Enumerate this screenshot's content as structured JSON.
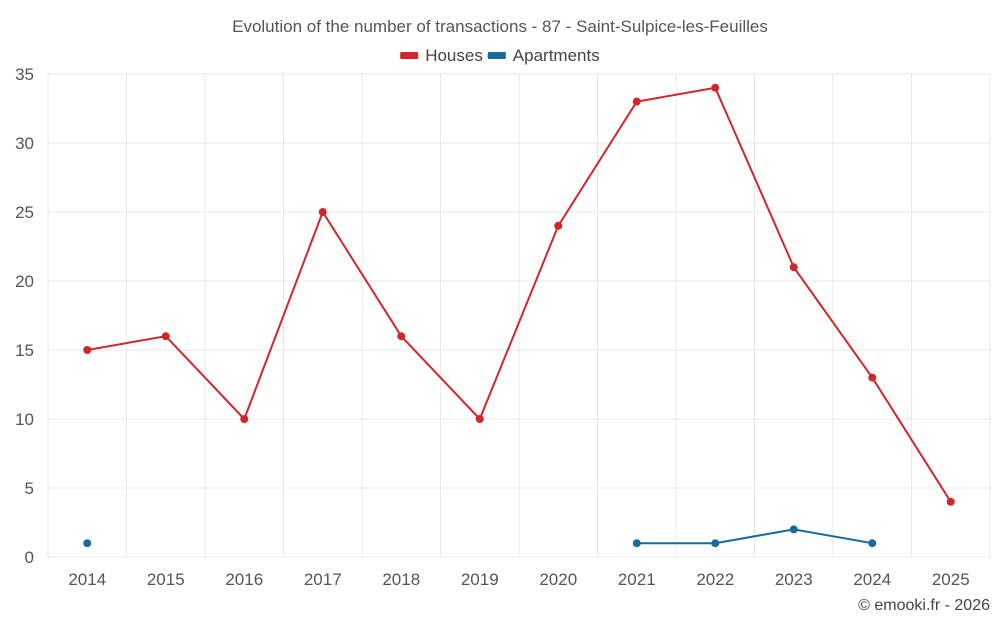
{
  "chart_data": {
    "type": "line",
    "title": "Evolution of the number of transactions - 87 - Saint-Sulpice-les-Feuilles",
    "categories": [
      "2014",
      "2015",
      "2016",
      "2017",
      "2018",
      "2019",
      "2020",
      "2021",
      "2022",
      "2023",
      "2024",
      "2025"
    ],
    "series": [
      {
        "name": "Houses",
        "color": "#d0282a",
        "values": [
          15,
          16,
          10,
          25,
          16,
          10,
          24,
          33,
          34,
          21,
          13,
          4
        ]
      },
      {
        "name": "Apartments",
        "color": "#1a6a9a",
        "values": [
          1,
          null,
          null,
          null,
          null,
          null,
          null,
          1,
          1,
          2,
          1,
          null
        ]
      }
    ],
    "ylim": [
      0,
      35
    ],
    "yticks": [
      0,
      5,
      10,
      15,
      20,
      25,
      30,
      35
    ],
    "xlabel": "",
    "ylabel": "",
    "grid": true,
    "legend": "top-center",
    "credit": "© emooki.fr - 2026"
  }
}
